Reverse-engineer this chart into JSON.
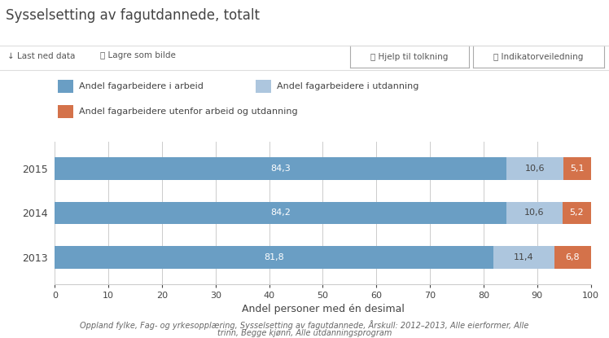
{
  "title": "Sysselsetting av fagutdannede, totalt",
  "years": [
    "2013",
    "2014",
    "2015"
  ],
  "arbeid": [
    81.8,
    84.2,
    84.3
  ],
  "utdanning": [
    11.4,
    10.6,
    10.6
  ],
  "utenfor": [
    6.8,
    5.2,
    5.1
  ],
  "color_arbeid": "#6a9ec4",
  "color_utdanning": "#adc6de",
  "color_utenfor": "#d4724a",
  "xlabel": "Andel personer med én desimal",
  "xlim": [
    0,
    100
  ],
  "xticks": [
    0,
    10,
    20,
    30,
    40,
    50,
    60,
    70,
    80,
    90,
    100
  ],
  "legend_labels": [
    "Andel fagarbeidere i arbeid",
    "Andel fagarbeidere i utdanning",
    "Andel fagarbeidere utenfor arbeid og utdanning"
  ],
  "footer_line1": "Oppland fylke, Fag- og yrkesopplæring, Sysselsetting av fagutdannede, Årskull: 2012–2013, Alle eierformer, Alle",
  "footer_line2": "trinn, Begge kjønn, Alle utdanningsprogram",
  "bar_height": 0.5,
  "bg_color": "#ffffff",
  "grid_color": "#cccccc",
  "text_color_dark": "#444444",
  "text_color_light": "#ffffff",
  "toolbar_text_color": "#555555",
  "separator_color": "#dddddd"
}
